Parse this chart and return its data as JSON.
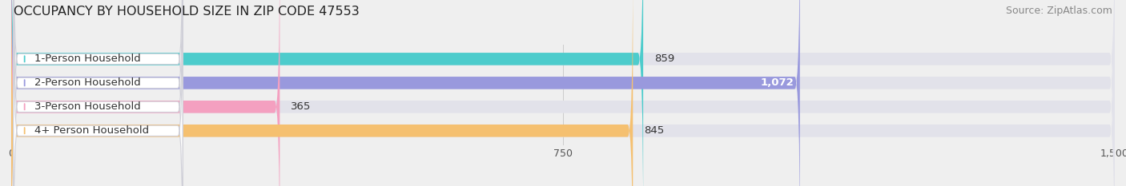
{
  "title": "OCCUPANCY BY HOUSEHOLD SIZE IN ZIP CODE 47553",
  "source": "Source: ZipAtlas.com",
  "categories": [
    "1-Person Household",
    "2-Person Household",
    "3-Person Household",
    "4+ Person Household"
  ],
  "values": [
    859,
    1072,
    365,
    845
  ],
  "bar_colors": [
    "#4DCCCC",
    "#9999DD",
    "#F4A0C0",
    "#F5C070"
  ],
  "value_labels": [
    "859",
    "1,072",
    "365",
    "845"
  ],
  "value_inside": [
    false,
    true,
    false,
    false
  ],
  "xlim": [
    0,
    1500
  ],
  "xticks": [
    0,
    750,
    1500
  ],
  "background_color": "#efefef",
  "bar_bg_color": "#e2e2ea",
  "title_fontsize": 11.5,
  "source_fontsize": 9,
  "label_fontsize": 9.5,
  "value_fontsize": 9.5
}
